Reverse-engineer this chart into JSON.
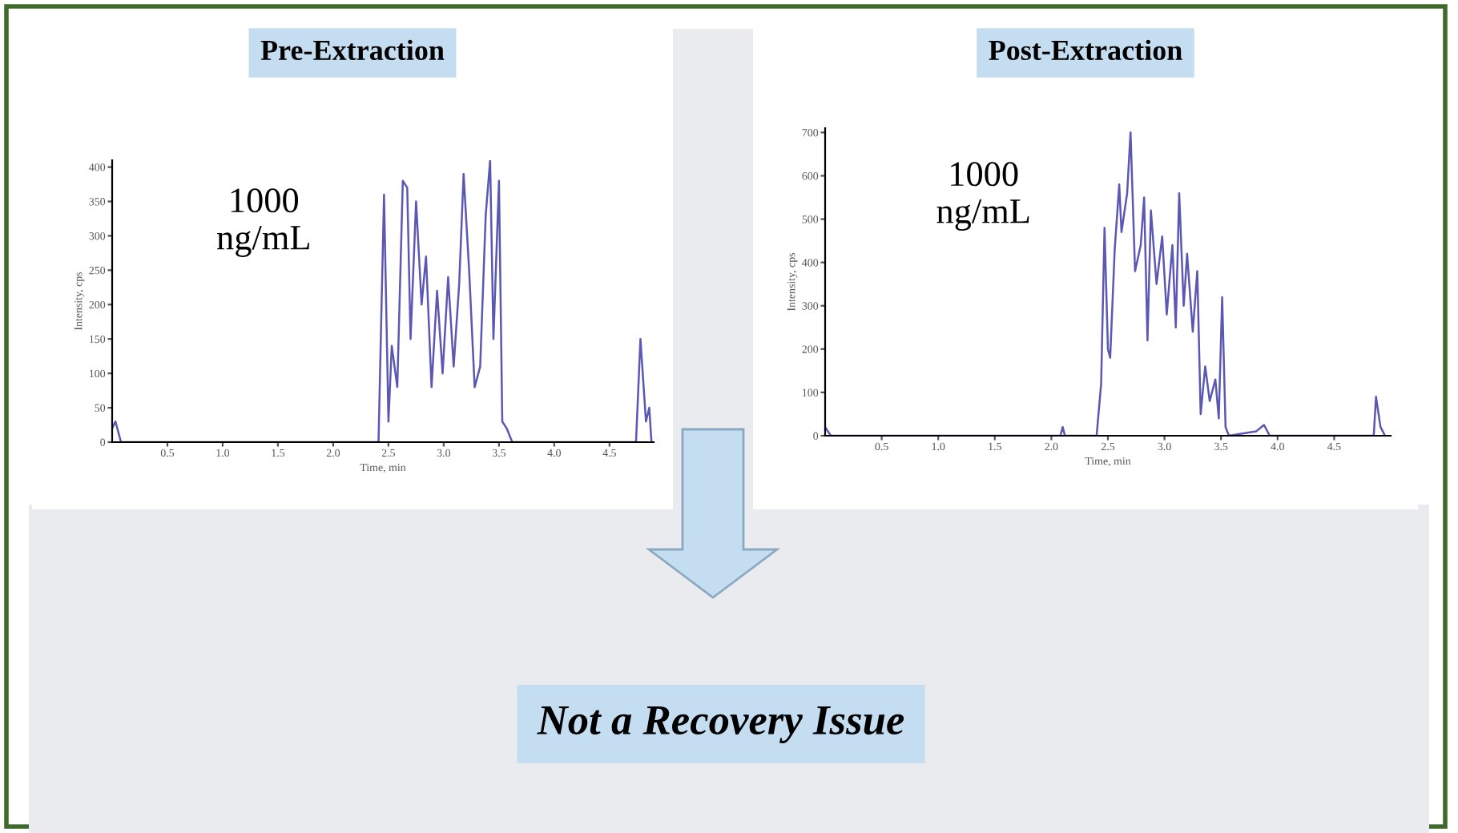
{
  "chart_data": [
    {
      "type": "line",
      "title": "Pre-Extraction",
      "xlabel": "Time, min",
      "ylabel": "Intensity, cps",
      "annotations": [
        "1000\nng/mL"
      ],
      "x": [
        0,
        0.03,
        0.08,
        2.41,
        2.46,
        2.5,
        2.53,
        2.58,
        2.63,
        2.67,
        2.7,
        2.75,
        2.8,
        2.84,
        2.89,
        2.94,
        2.99,
        3.04,
        3.09,
        3.14,
        3.18,
        3.23,
        3.28,
        3.33,
        3.38,
        3.42,
        3.45,
        3.5,
        3.53,
        3.57,
        3.62,
        4.74,
        4.78,
        4.83,
        4.86,
        4.88
      ],
      "series": [
        {
          "color": "#5a58b4",
          "values": [
            20,
            30,
            0,
            0,
            360,
            30,
            140,
            80,
            380,
            370,
            150,
            350,
            200,
            270,
            80,
            220,
            100,
            240,
            110,
            230,
            390,
            250,
            80,
            110,
            330,
            410,
            150,
            380,
            30,
            20,
            0,
            0,
            150,
            30,
            50,
            0
          ]
        }
      ],
      "xlim": [
        0,
        4.9
      ],
      "ylim": [
        0,
        410
      ],
      "xticks": [
        0.5,
        {
          "value": 1,
          "label": "1.0"
        },
        1.5,
        {
          "value": 2,
          "label": "2.0"
        },
        2.5,
        {
          "value": 3,
          "label": "3.0"
        },
        3.5,
        {
          "value": 4,
          "label": "4.0"
        },
        4.5
      ],
      "yticks": [
        0,
        50,
        100,
        150,
        200,
        250,
        300,
        350,
        400
      ],
      "grid": false,
      "legend": false
    },
    {
      "type": "line",
      "title": "Post-Extraction",
      "xlabel": "Time, min",
      "ylabel": "Intensity, cps",
      "annotations": [
        "1000\nng/mL"
      ],
      "x": [
        0,
        0.05,
        2.08,
        2.1,
        2.12,
        2.4,
        2.44,
        2.47,
        2.5,
        2.52,
        2.56,
        2.6,
        2.62,
        2.67,
        2.7,
        2.74,
        2.79,
        2.82,
        2.85,
        2.88,
        2.93,
        2.98,
        3.02,
        3.07,
        3.1,
        3.13,
        3.17,
        3.2,
        3.25,
        3.29,
        3.32,
        3.36,
        3.4,
        3.45,
        3.48,
        3.51,
        3.54,
        3.57,
        3.81,
        3.88,
        3.93,
        4.85,
        4.87,
        4.91,
        4.95
      ],
      "series": [
        {
          "color": "#5a58b4",
          "values": [
            20,
            0,
            0,
            20,
            0,
            0,
            120,
            480,
            200,
            180,
            430,
            580,
            470,
            560,
            700,
            380,
            440,
            550,
            220,
            520,
            350,
            460,
            280,
            440,
            250,
            560,
            300,
            420,
            240,
            380,
            50,
            160,
            80,
            130,
            40,
            320,
            20,
            0,
            10,
            25,
            0,
            0,
            90,
            20,
            0
          ]
        }
      ],
      "xlim": [
        0,
        5
      ],
      "ylim": [
        0,
        710
      ],
      "xticks": [
        0.5,
        {
          "value": 1,
          "label": "1.0"
        },
        1.5,
        {
          "value": 2,
          "label": "2.0"
        },
        2.5,
        {
          "value": 3,
          "label": "3.0"
        },
        3.5,
        {
          "value": 4,
          "label": "4.0"
        },
        4.5
      ],
      "yticks": [
        0,
        100,
        200,
        300,
        400,
        500,
        600,
        700
      ],
      "grid": false,
      "legend": false
    },
    {
      "type": "other",
      "annotations": [
        "Not a Recovery Issue"
      ]
    }
  ]
}
